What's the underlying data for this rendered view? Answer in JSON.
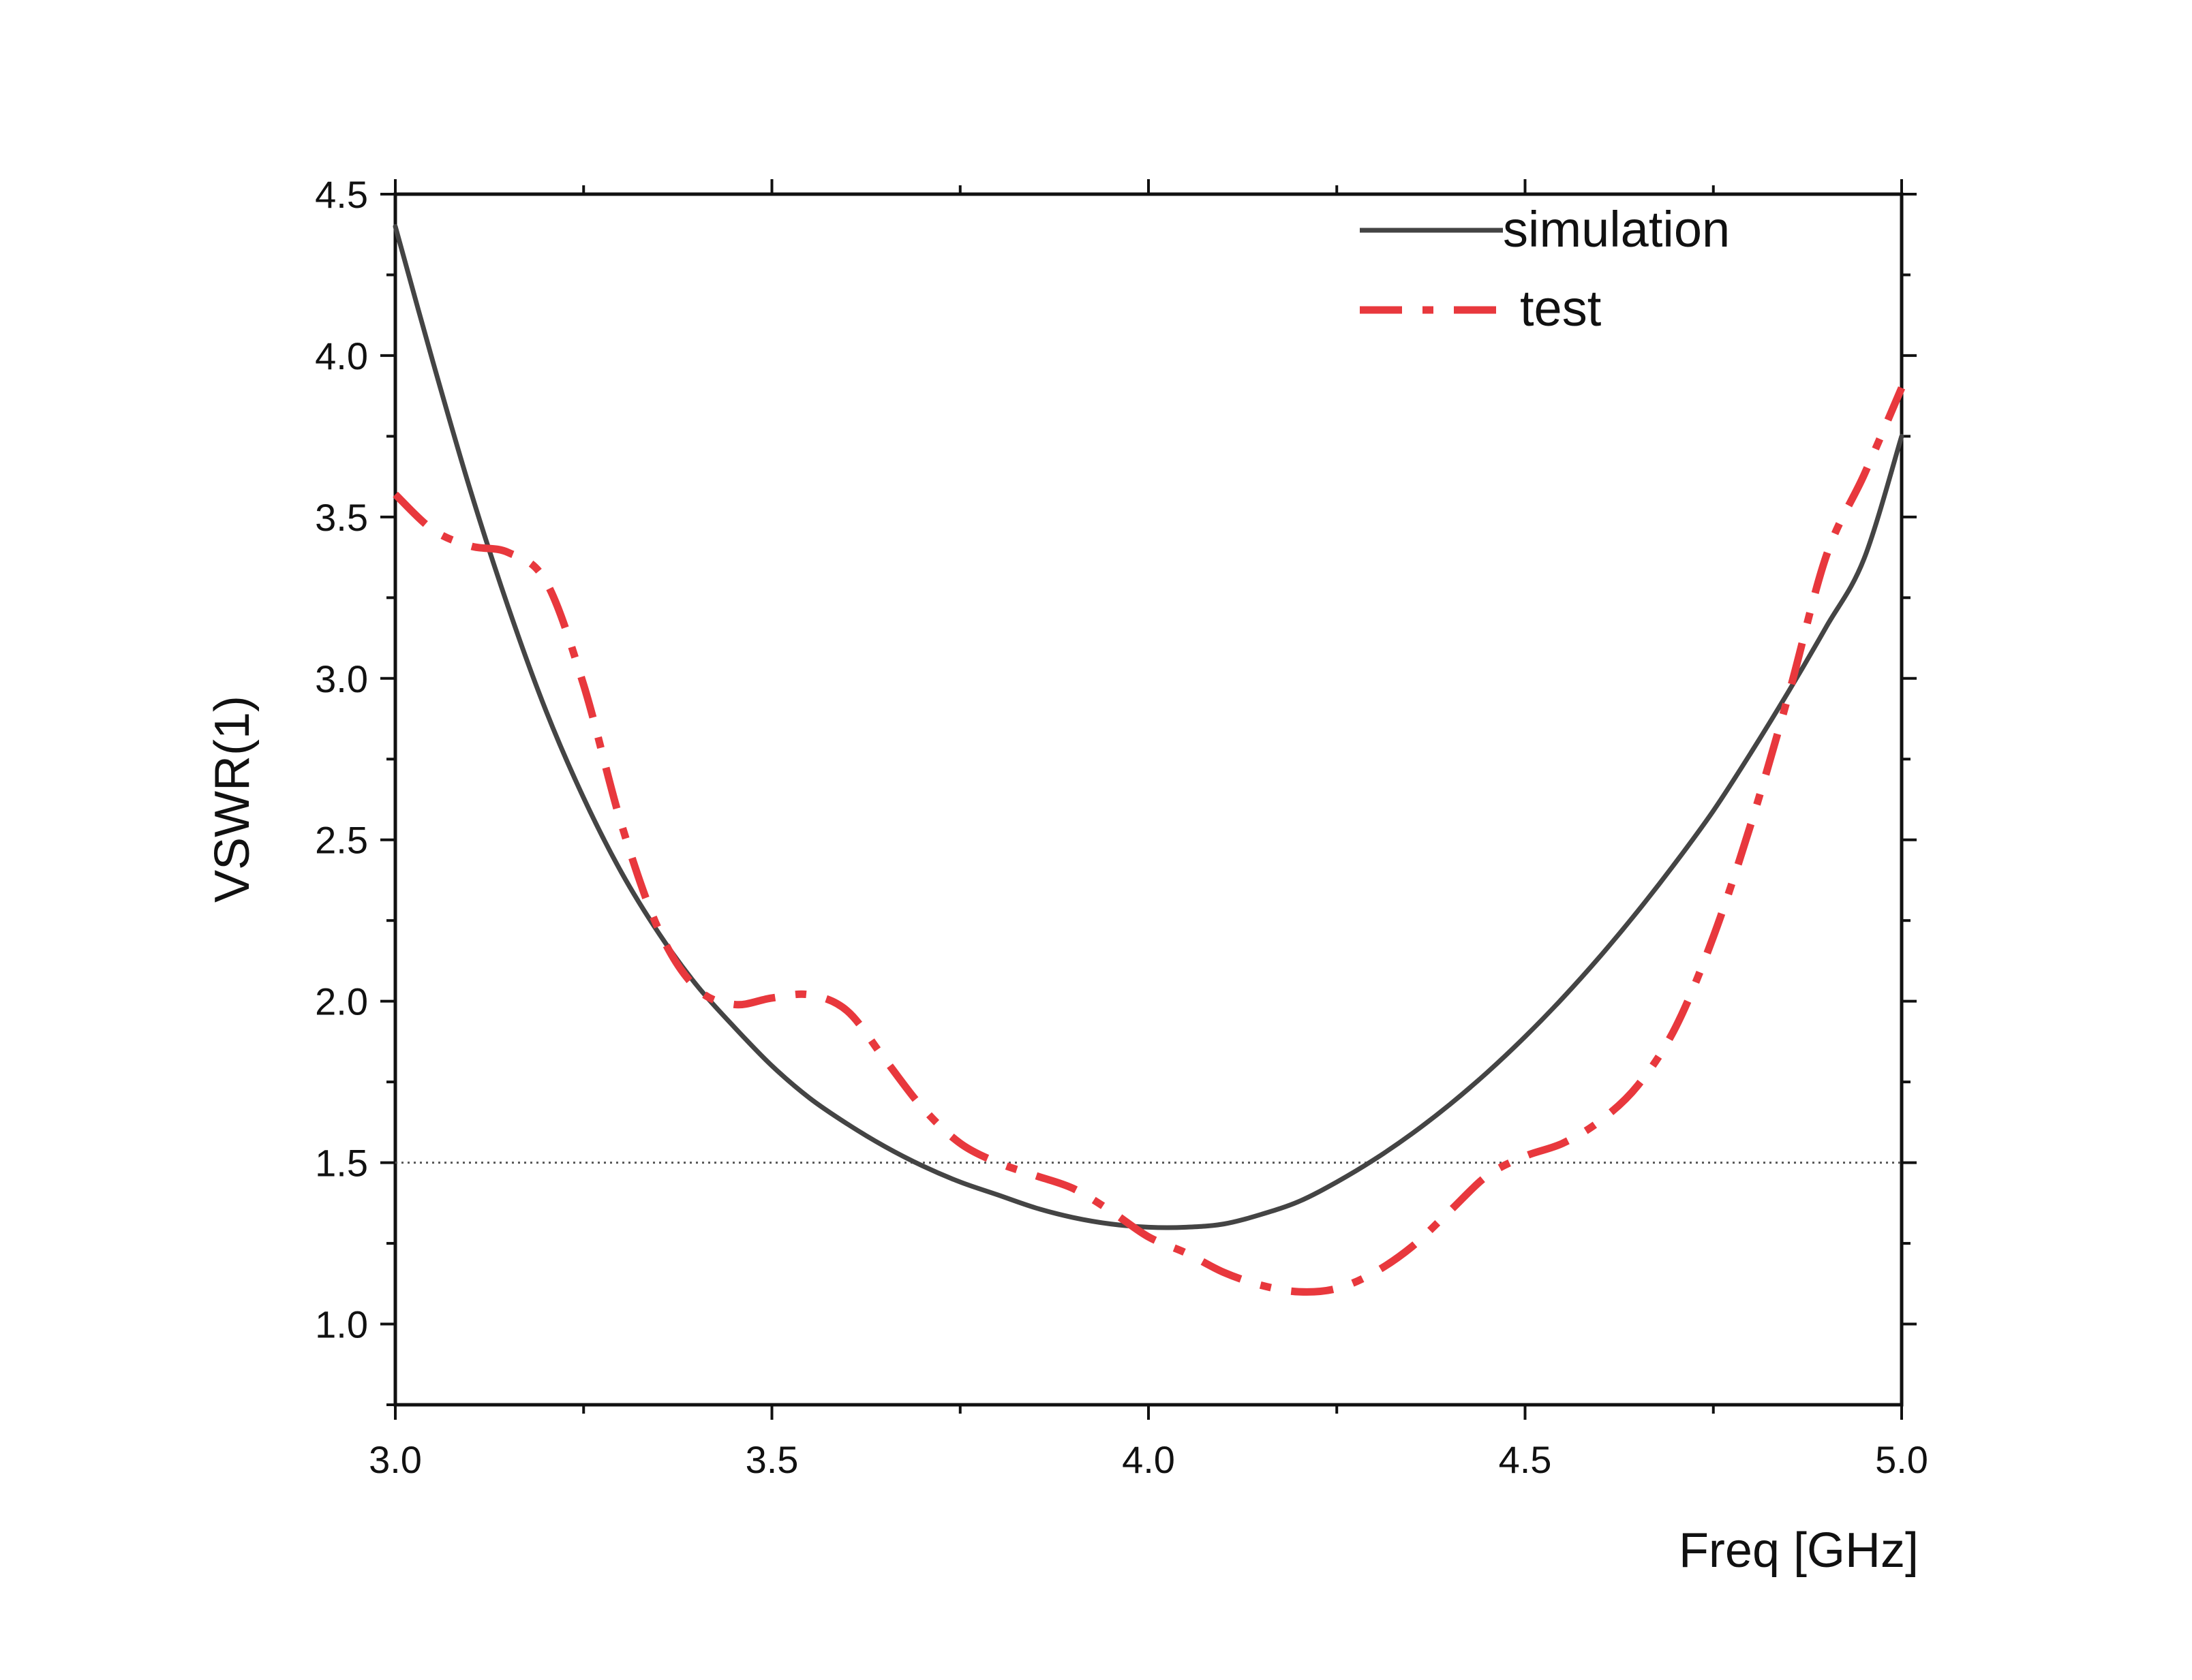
{
  "chart_data": {
    "type": "line",
    "title": "",
    "xlabel": "Freq [GHz]",
    "ylabel": "VSWR(1)",
    "xlim": [
      3.0,
      5.0
    ],
    "ylim": [
      0.75,
      4.5
    ],
    "x_ticks": [
      {
        "value": 3.0,
        "label": "3.0"
      },
      {
        "value": 3.5,
        "label": "3.5"
      },
      {
        "value": 4.0,
        "label": "4.0"
      },
      {
        "value": 4.5,
        "label": "4.5"
      },
      {
        "value": 5.0,
        "label": "5.0"
      }
    ],
    "y_ticks": [
      {
        "value": 1.0,
        "label": "1.0"
      },
      {
        "value": 1.5,
        "label": "1.5"
      },
      {
        "value": 2.0,
        "label": "2.0"
      },
      {
        "value": 2.5,
        "label": "2.5"
      },
      {
        "value": 3.0,
        "label": "3.0"
      },
      {
        "value": 3.5,
        "label": "3.5"
      },
      {
        "value": 4.0,
        "label": "4.0"
      },
      {
        "value": 4.5,
        "label": "4.5"
      }
    ],
    "x_minor_ticks": [
      3.25,
      3.75,
      4.25,
      4.75
    ],
    "y_minor_ticks": [
      1.25,
      1.75,
      2.25,
      2.75,
      3.25,
      3.75,
      4.25
    ],
    "reference_line": {
      "y": 1.5,
      "color": "#555555",
      "style": "dotted"
    },
    "legend_position": "top-right",
    "grid": false,
    "series": [
      {
        "name": "simulation",
        "color": "#444444",
        "style": "solid",
        "x": [
          3.0,
          3.05,
          3.1,
          3.15,
          3.2,
          3.25,
          3.3,
          3.35,
          3.4,
          3.45,
          3.5,
          3.55,
          3.6,
          3.65,
          3.7,
          3.75,
          3.8,
          3.85,
          3.9,
          3.95,
          4.0,
          4.05,
          4.1,
          4.15,
          4.2,
          4.25,
          4.3,
          4.35,
          4.4,
          4.45,
          4.5,
          4.55,
          4.6,
          4.65,
          4.7,
          4.75,
          4.8,
          4.85,
          4.9,
          4.95,
          5.0
        ],
        "values": [
          4.4,
          3.98,
          3.58,
          3.22,
          2.9,
          2.63,
          2.4,
          2.21,
          2.05,
          1.92,
          1.8,
          1.7,
          1.62,
          1.55,
          1.49,
          1.44,
          1.4,
          1.36,
          1.33,
          1.31,
          1.3,
          1.3,
          1.31,
          1.34,
          1.38,
          1.44,
          1.51,
          1.59,
          1.68,
          1.78,
          1.89,
          2.01,
          2.14,
          2.28,
          2.43,
          2.59,
          2.77,
          2.96,
          3.16,
          3.37,
          3.75
        ]
      },
      {
        "name": "test",
        "color": "#e8383d",
        "style": "dashdot",
        "x": [
          3.0,
          3.05,
          3.1,
          3.15,
          3.2,
          3.25,
          3.3,
          3.35,
          3.4,
          3.45,
          3.5,
          3.55,
          3.6,
          3.65,
          3.7,
          3.75,
          3.8,
          3.85,
          3.9,
          3.95,
          4.0,
          4.05,
          4.1,
          4.15,
          4.2,
          4.25,
          4.3,
          4.35,
          4.4,
          4.45,
          4.5,
          4.55,
          4.6,
          4.65,
          4.7,
          4.75,
          4.8,
          4.85,
          4.9,
          4.95,
          5.0
        ],
        "values": [
          3.57,
          3.46,
          3.41,
          3.39,
          3.3,
          2.98,
          2.55,
          2.22,
          2.04,
          1.99,
          2.01,
          2.02,
          1.97,
          1.82,
          1.67,
          1.56,
          1.5,
          1.46,
          1.42,
          1.35,
          1.27,
          1.22,
          1.16,
          1.12,
          1.1,
          1.11,
          1.16,
          1.24,
          1.35,
          1.46,
          1.52,
          1.56,
          1.63,
          1.74,
          1.92,
          2.2,
          2.55,
          2.95,
          3.38,
          3.63,
          3.9
        ]
      }
    ]
  }
}
